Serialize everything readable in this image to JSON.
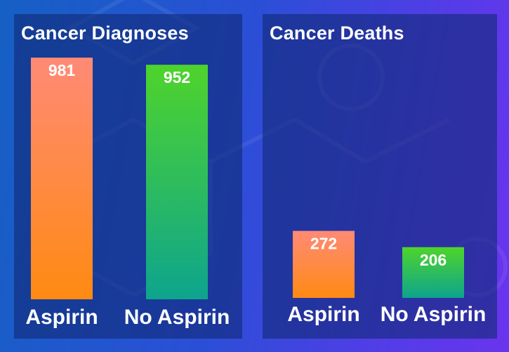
{
  "colors": {
    "aspirin_top": "#ff8a76",
    "aspirin_bottom": "#ff8a12",
    "no_aspirin_top": "#4fd42b",
    "no_aspirin_bottom": "#0da48e"
  },
  "chart_data": [
    {
      "type": "bar",
      "title": "Cancer Diagnoses",
      "categories": [
        "Aspirin",
        "No Aspirin"
      ],
      "values": [
        981,
        952
      ],
      "ylim": [
        0,
        981
      ],
      "grid": false,
      "axes_visible": false
    },
    {
      "type": "bar",
      "title": "Cancer Deaths",
      "categories": [
        "Aspirin",
        "No Aspirin"
      ],
      "values": [
        272,
        206
      ],
      "ylim": [
        0,
        981
      ],
      "grid": false,
      "axes_visible": false
    }
  ]
}
